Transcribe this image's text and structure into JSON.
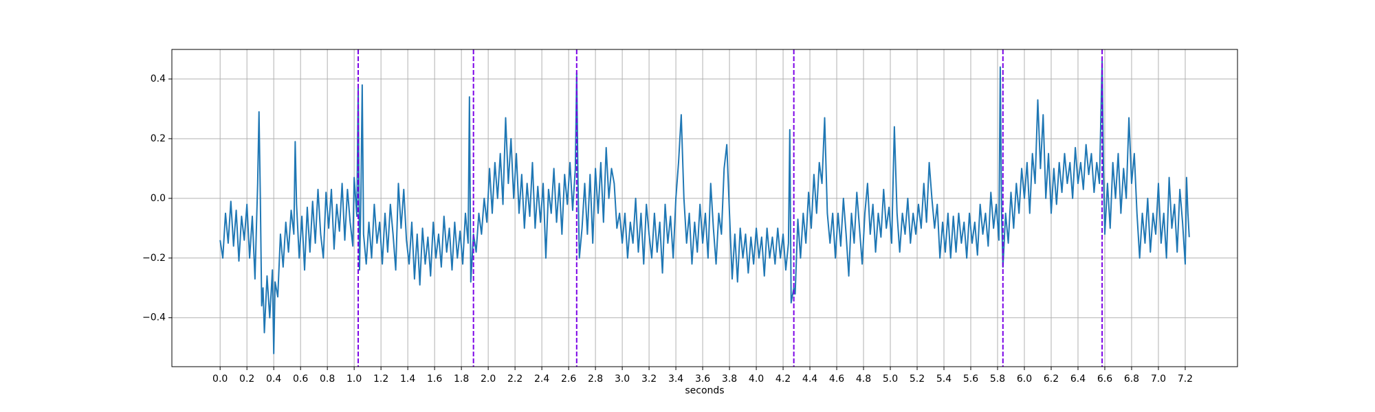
{
  "chart_data": {
    "type": "line",
    "xlabel": "seconds",
    "xlim": [
      -0.36,
      7.59
    ],
    "ylim": [
      -0.564,
      0.499
    ],
    "xticks": [
      {
        "value": 0,
        "label": "0.0"
      },
      0.2,
      0.4,
      0.6,
      0.8,
      {
        "value": 1,
        "label": "1.0"
      },
      1.2,
      1.4,
      1.6,
      1.8,
      {
        "value": 2,
        "label": "2.0"
      },
      2.2,
      2.4,
      2.6,
      2.8,
      {
        "value": 3,
        "label": "3.0"
      },
      3.2,
      3.4,
      3.6,
      3.8,
      {
        "value": 4,
        "label": "4.0"
      },
      4.2,
      4.4,
      4.6,
      4.8,
      {
        "value": 5,
        "label": "5.0"
      },
      5.2,
      5.4,
      5.6,
      5.8,
      {
        "value": 6,
        "label": "6.0"
      },
      6.2,
      6.4,
      6.6,
      6.8,
      {
        "value": 7,
        "label": "7.0"
      },
      7.2
    ],
    "yticks": [
      {
        "value": -0.4,
        "label": "−0.4"
      },
      {
        "value": -0.2,
        "label": "−0.2"
      },
      {
        "value": 0,
        "label": "0.0"
      },
      0.2,
      0.4
    ],
    "grid": true,
    "vlines": [
      1.03,
      1.89,
      2.66,
      4.28,
      5.84,
      6.58
    ],
    "vline_color": "#7b00e6",
    "x": [
      0.0,
      0.02,
      0.04,
      0.06,
      0.08,
      0.1,
      0.12,
      0.14,
      0.16,
      0.18,
      0.2,
      0.22,
      0.24,
      0.26,
      0.28,
      0.29,
      0.3,
      0.31,
      0.32,
      0.33,
      0.35,
      0.37,
      0.39,
      0.4,
      0.41,
      0.43,
      0.45,
      0.47,
      0.49,
      0.51,
      0.53,
      0.55,
      0.56,
      0.57,
      0.59,
      0.61,
      0.63,
      0.65,
      0.67,
      0.69,
      0.71,
      0.73,
      0.75,
      0.77,
      0.79,
      0.81,
      0.83,
      0.85,
      0.87,
      0.89,
      0.91,
      0.93,
      0.95,
      0.97,
      0.99,
      1.0,
      1.02,
      1.03,
      1.04,
      1.05,
      1.06,
      1.07,
      1.09,
      1.11,
      1.13,
      1.15,
      1.17,
      1.19,
      1.21,
      1.23,
      1.25,
      1.27,
      1.29,
      1.31,
      1.33,
      1.35,
      1.37,
      1.39,
      1.41,
      1.43,
      1.45,
      1.47,
      1.49,
      1.51,
      1.53,
      1.55,
      1.57,
      1.59,
      1.61,
      1.63,
      1.65,
      1.67,
      1.69,
      1.71,
      1.73,
      1.75,
      1.77,
      1.79,
      1.81,
      1.83,
      1.85,
      1.86,
      1.87,
      1.89,
      1.91,
      1.93,
      1.95,
      1.97,
      1.99,
      2.01,
      2.03,
      2.05,
      2.07,
      2.09,
      2.11,
      2.13,
      2.15,
      2.17,
      2.19,
      2.21,
      2.23,
      2.25,
      2.27,
      2.29,
      2.31,
      2.33,
      2.35,
      2.37,
      2.39,
      2.41,
      2.43,
      2.45,
      2.47,
      2.49,
      2.51,
      2.53,
      2.55,
      2.57,
      2.59,
      2.61,
      2.63,
      2.65,
      2.66,
      2.67,
      2.68,
      2.7,
      2.72,
      2.74,
      2.76,
      2.78,
      2.8,
      2.82,
      2.84,
      2.86,
      2.88,
      2.9,
      2.92,
      2.94,
      2.96,
      2.98,
      3.0,
      3.02,
      3.04,
      3.06,
      3.08,
      3.1,
      3.12,
      3.14,
      3.16,
      3.18,
      3.2,
      3.22,
      3.24,
      3.26,
      3.28,
      3.3,
      3.32,
      3.34,
      3.36,
      3.38,
      3.4,
      3.42,
      3.44,
      3.46,
      3.48,
      3.5,
      3.52,
      3.54,
      3.56,
      3.58,
      3.6,
      3.62,
      3.64,
      3.66,
      3.68,
      3.7,
      3.72,
      3.74,
      3.76,
      3.78,
      3.8,
      3.82,
      3.84,
      3.86,
      3.88,
      3.9,
      3.92,
      3.94,
      3.96,
      3.98,
      4.0,
      4.02,
      4.04,
      4.06,
      4.08,
      4.1,
      4.12,
      4.14,
      4.16,
      4.18,
      4.2,
      4.22,
      4.24,
      4.25,
      4.26,
      4.28,
      4.29,
      4.31,
      4.33,
      4.35,
      4.37,
      4.39,
      4.41,
      4.43,
      4.45,
      4.47,
      4.49,
      4.51,
      4.53,
      4.55,
      4.57,
      4.59,
      4.61,
      4.63,
      4.65,
      4.67,
      4.69,
      4.71,
      4.73,
      4.75,
      4.77,
      4.79,
      4.81,
      4.83,
      4.85,
      4.87,
      4.89,
      4.91,
      4.93,
      4.95,
      4.97,
      4.99,
      5.01,
      5.03,
      5.05,
      5.07,
      5.09,
      5.11,
      5.13,
      5.15,
      5.17,
      5.19,
      5.21,
      5.23,
      5.25,
      5.27,
      5.29,
      5.31,
      5.33,
      5.35,
      5.37,
      5.39,
      5.41,
      5.43,
      5.45,
      5.47,
      5.49,
      5.51,
      5.53,
      5.55,
      5.57,
      5.59,
      5.61,
      5.63,
      5.65,
      5.67,
      5.69,
      5.71,
      5.73,
      5.75,
      5.77,
      5.79,
      5.81,
      5.82,
      5.83,
      5.84,
      5.86,
      5.88,
      5.9,
      5.92,
      5.94,
      5.96,
      5.98,
      6.0,
      6.02,
      6.04,
      6.06,
      6.08,
      6.1,
      6.12,
      6.14,
      6.16,
      6.18,
      6.2,
      6.22,
      6.24,
      6.26,
      6.28,
      6.3,
      6.32,
      6.34,
      6.36,
      6.38,
      6.4,
      6.42,
      6.44,
      6.46,
      6.48,
      6.5,
      6.52,
      6.54,
      6.56,
      6.58,
      6.59,
      6.6,
      6.62,
      6.64,
      6.66,
      6.68,
      6.7,
      6.72,
      6.74,
      6.76,
      6.78,
      6.8,
      6.82,
      6.84,
      6.86,
      6.88,
      6.9,
      6.92,
      6.94,
      6.96,
      6.98,
      7.0,
      7.02,
      7.04,
      7.06,
      7.08,
      7.1,
      7.12,
      7.14,
      7.16,
      7.18,
      7.2,
      7.21,
      7.22,
      7.23
    ],
    "series": [
      {
        "color": "#1f77b4",
        "values": [
          -0.14,
          -0.2,
          -0.05,
          -0.15,
          -0.01,
          -0.16,
          -0.04,
          -0.21,
          -0.06,
          -0.14,
          -0.02,
          -0.2,
          -0.06,
          -0.27,
          0.05,
          0.29,
          0.0,
          -0.36,
          -0.3,
          -0.45,
          -0.26,
          -0.4,
          -0.24,
          -0.52,
          -0.28,
          -0.33,
          -0.12,
          -0.23,
          -0.08,
          -0.18,
          -0.04,
          -0.12,
          0.19,
          -0.02,
          -0.2,
          -0.06,
          -0.24,
          -0.03,
          -0.18,
          -0.01,
          -0.15,
          0.03,
          -0.12,
          -0.2,
          0.02,
          -0.1,
          0.03,
          -0.17,
          -0.02,
          -0.11,
          0.05,
          -0.14,
          0.03,
          -0.08,
          -0.16,
          0.07,
          -0.06,
          0.37,
          -0.24,
          0.0,
          0.38,
          -0.12,
          -0.22,
          -0.08,
          -0.2,
          -0.02,
          -0.15,
          -0.08,
          -0.22,
          -0.05,
          -0.18,
          -0.02,
          -0.12,
          -0.24,
          0.05,
          -0.1,
          0.03,
          -0.14,
          -0.22,
          -0.08,
          -0.27,
          -0.12,
          -0.29,
          -0.1,
          -0.22,
          -0.13,
          -0.26,
          -0.08,
          -0.2,
          -0.12,
          -0.23,
          -0.06,
          -0.18,
          -0.1,
          -0.24,
          -0.08,
          -0.2,
          -0.11,
          -0.22,
          -0.05,
          -0.15,
          0.34,
          -0.28,
          -0.12,
          -0.18,
          -0.05,
          -0.12,
          0.0,
          -0.08,
          0.1,
          -0.05,
          0.12,
          0.0,
          0.15,
          -0.02,
          0.27,
          0.05,
          0.2,
          0.0,
          0.15,
          -0.05,
          0.08,
          -0.1,
          0.05,
          -0.06,
          0.12,
          -0.1,
          0.04,
          -0.08,
          0.05,
          -0.2,
          0.03,
          -0.05,
          0.1,
          -0.08,
          0.05,
          -0.12,
          0.08,
          -0.02,
          0.12,
          -0.04,
          0.1,
          0.42,
          0.05,
          -0.2,
          -0.1,
          0.05,
          -0.12,
          0.08,
          -0.15,
          0.1,
          -0.05,
          0.12,
          -0.08,
          0.17,
          0.0,
          0.1,
          0.05,
          -0.1,
          -0.05,
          -0.15,
          -0.05,
          -0.2,
          -0.08,
          -0.15,
          0.0,
          -0.18,
          -0.05,
          -0.22,
          -0.02,
          -0.12,
          -0.2,
          -0.05,
          -0.18,
          -0.08,
          -0.25,
          -0.02,
          -0.15,
          -0.06,
          -0.2,
          0.0,
          0.12,
          0.28,
          0.0,
          -0.15,
          -0.05,
          -0.22,
          -0.08,
          -0.18,
          -0.02,
          -0.15,
          -0.05,
          -0.2,
          0.05,
          -0.1,
          -0.22,
          -0.05,
          -0.12,
          0.1,
          0.18,
          -0.05,
          -0.27,
          -0.12,
          -0.28,
          -0.1,
          -0.2,
          -0.12,
          -0.25,
          -0.13,
          -0.22,
          -0.1,
          -0.2,
          -0.13,
          -0.26,
          -0.1,
          -0.2,
          -0.13,
          -0.22,
          -0.1,
          -0.2,
          -0.12,
          -0.24,
          -0.15,
          0.23,
          -0.35,
          -0.3,
          -0.32,
          -0.07,
          -0.2,
          -0.05,
          -0.15,
          0.02,
          -0.1,
          0.08,
          -0.05,
          0.12,
          0.05,
          0.27,
          -0.05,
          -0.15,
          -0.05,
          -0.2,
          -0.05,
          -0.16,
          0.0,
          -0.12,
          -0.26,
          -0.05,
          -0.15,
          0.02,
          -0.1,
          -0.22,
          -0.05,
          0.05,
          -0.12,
          -0.02,
          -0.18,
          -0.05,
          -0.13,
          0.03,
          -0.1,
          -0.03,
          -0.15,
          0.24,
          -0.05,
          -0.18,
          -0.05,
          -0.12,
          0.0,
          -0.15,
          -0.05,
          -0.12,
          -0.02,
          -0.1,
          0.05,
          -0.08,
          0.12,
          0.0,
          -0.1,
          -0.02,
          -0.2,
          -0.08,
          -0.18,
          -0.05,
          -0.2,
          -0.06,
          -0.18,
          -0.05,
          -0.15,
          -0.08,
          -0.2,
          -0.05,
          -0.15,
          -0.08,
          -0.19,
          -0.02,
          -0.12,
          -0.05,
          -0.16,
          0.02,
          -0.1,
          -0.02,
          -0.14,
          0.44,
          -0.05,
          -0.23,
          -0.05,
          -0.15,
          0.02,
          -0.1,
          0.05,
          -0.05,
          0.1,
          0.0,
          0.12,
          -0.05,
          0.15,
          0.05,
          0.33,
          0.1,
          0.28,
          0.0,
          0.15,
          -0.05,
          0.1,
          -0.02,
          0.12,
          0.02,
          0.15,
          0.05,
          0.12,
          0.0,
          0.17,
          0.05,
          0.12,
          0.03,
          0.18,
          0.08,
          0.15,
          0.02,
          0.12,
          0.05,
          0.46,
          0.1,
          -0.12,
          0.05,
          -0.1,
          0.12,
          0.0,
          0.15,
          -0.05,
          0.1,
          0.0,
          0.27,
          0.05,
          0.15,
          -0.05,
          -0.2,
          -0.05,
          -0.15,
          0.0,
          -0.18,
          -0.05,
          -0.12,
          0.05,
          -0.15,
          -0.05,
          -0.2,
          0.07,
          -0.1,
          -0.02,
          -0.18,
          0.03,
          -0.08,
          -0.22,
          0.07,
          -0.05,
          -0.13
        ]
      }
    ]
  }
}
